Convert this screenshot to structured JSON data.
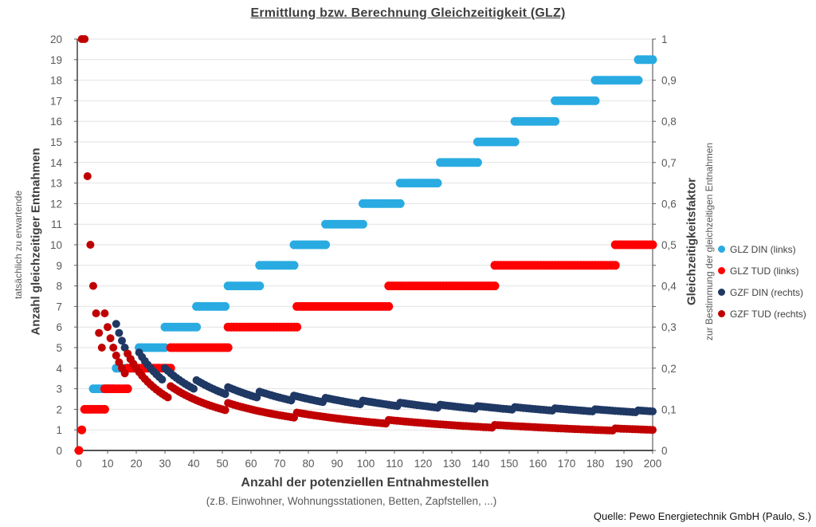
{
  "title": "Ermittlung bzw. Berechnung Gleichzeitigkeit (GLZ)",
  "footer": {
    "source": "Quelle: Pewo Energietechnik GmbH (Paulo, S.)"
  },
  "chart_data": {
    "type": "scatter",
    "title": "Ermittlung bzw. Berechnung Gleichzeitigkeit (GLZ)",
    "grid": "horizontal",
    "legend_position": "right",
    "x_axis": {
      "label": "Anzahl der potenziellen Entnahmestellen",
      "sublabel": "(z.B. Einwohner, Wohnungsstationen, Betten, Zapfstellen, ...)",
      "min": 0,
      "max": 200,
      "tick_step": 10
    },
    "y_left": {
      "label": "Anzahl gleichzeitiger Entnahmen",
      "sublabel": "tatsächlich zu erwartende",
      "min": 0,
      "max": 20,
      "tick_step": 1
    },
    "y_right": {
      "label": "Gleichzeitigkeitsfaktor",
      "sublabel": "zur Bestimmung der gleichzeitigen Entnahmen",
      "min": 0,
      "max": 1,
      "tick_step": 0.05,
      "label_step": 0.1,
      "decimal_comma": true
    },
    "series": [
      {
        "name": "GLZ DIN (links)",
        "color": "#29ABE2",
        "axis": "left",
        "kind": "step",
        "marker_r": 5.5,
        "steps": [
          {
            "value": 3,
            "from": 5,
            "to": 12
          },
          {
            "value": 4,
            "from": 13,
            "to": 20
          },
          {
            "value": 5,
            "from": 21,
            "to": 30
          },
          {
            "value": 6,
            "from": 30,
            "to": 41
          },
          {
            "value": 7,
            "from": 41,
            "to": 51
          },
          {
            "value": 8,
            "from": 52,
            "to": 63
          },
          {
            "value": 9,
            "from": 63,
            "to": 75
          },
          {
            "value": 10,
            "from": 75,
            "to": 86
          },
          {
            "value": 11,
            "from": 86,
            "to": 99
          },
          {
            "value": 12,
            "from": 99,
            "to": 112
          },
          {
            "value": 13,
            "from": 112,
            "to": 125
          },
          {
            "value": 14,
            "from": 126,
            "to": 139
          },
          {
            "value": 15,
            "from": 139,
            "to": 152
          },
          {
            "value": 16,
            "from": 152,
            "to": 166
          },
          {
            "value": 17,
            "from": 166,
            "to": 180
          },
          {
            "value": 18,
            "from": 180,
            "to": 195
          },
          {
            "value": 19,
            "from": 195,
            "to": 200
          }
        ]
      },
      {
        "name": "GLZ TUD (links)",
        "color": "#FF0000",
        "axis": "left",
        "kind": "step",
        "marker_r": 5.5,
        "steps": [
          {
            "value": 0,
            "from": 0,
            "to": 0
          },
          {
            "value": 1,
            "from": 1,
            "to": 1
          },
          {
            "value": 2,
            "from": 2,
            "to": 9
          },
          {
            "value": 3,
            "from": 9,
            "to": 17
          },
          {
            "value": 4,
            "from": 17,
            "to": 32
          },
          {
            "value": 5,
            "from": 32,
            "to": 52
          },
          {
            "value": 6,
            "from": 52,
            "to": 76
          },
          {
            "value": 7,
            "from": 76,
            "to": 108
          },
          {
            "value": 8,
            "from": 108,
            "to": 145
          },
          {
            "value": 9,
            "from": 145,
            "to": 187
          },
          {
            "value": 10,
            "from": 187,
            "to": 200
          }
        ]
      },
      {
        "name": "GZF DIN (rechts)",
        "color": "#1F3864",
        "axis": "right",
        "kind": "ratio",
        "base": "GLZ DIN (links)",
        "x_from": 13,
        "x_to": 200,
        "marker_r": 5
      },
      {
        "name": "GZF TUD (rechts)",
        "color": "#C00000",
        "axis": "right",
        "kind": "ratio",
        "base": "GLZ TUD (links)",
        "x_from": 1,
        "x_to": 200,
        "marker_r": 5
      }
    ]
  }
}
